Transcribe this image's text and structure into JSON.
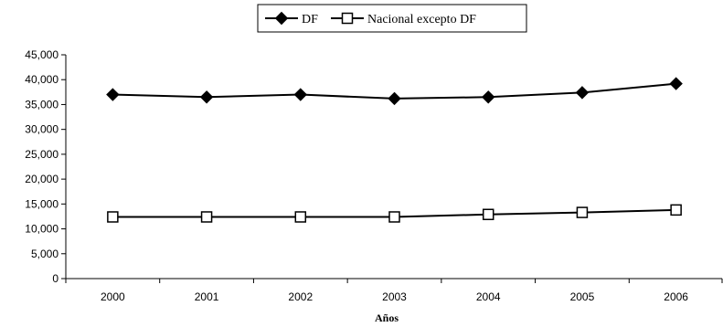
{
  "chart_data": {
    "type": "line",
    "title": "",
    "xlabel": "Años",
    "ylabel": "",
    "categories": [
      "2000",
      "2001",
      "2002",
      "2003",
      "2004",
      "2005",
      "2006"
    ],
    "ylim": [
      0,
      45000
    ],
    "yticks": [
      0,
      5000,
      10000,
      15000,
      20000,
      25000,
      30000,
      35000,
      40000,
      45000
    ],
    "ytick_labels": [
      "0",
      "5,000",
      "10,000",
      "15,000",
      "20,000",
      "25,000",
      "30,000",
      "35,000",
      "40,000",
      "45,000"
    ],
    "grid": false,
    "legend_position": "top-center",
    "series": [
      {
        "name": "DF",
        "marker": "diamond-filled",
        "color": "#000000",
        "values": [
          37000,
          36500,
          37000,
          36200,
          36500,
          37400,
          39200
        ]
      },
      {
        "name": "Nacional excepto DF",
        "marker": "square-open",
        "color": "#000000",
        "values": [
          12400,
          12400,
          12400,
          12400,
          12900,
          13300,
          13800
        ]
      }
    ]
  }
}
